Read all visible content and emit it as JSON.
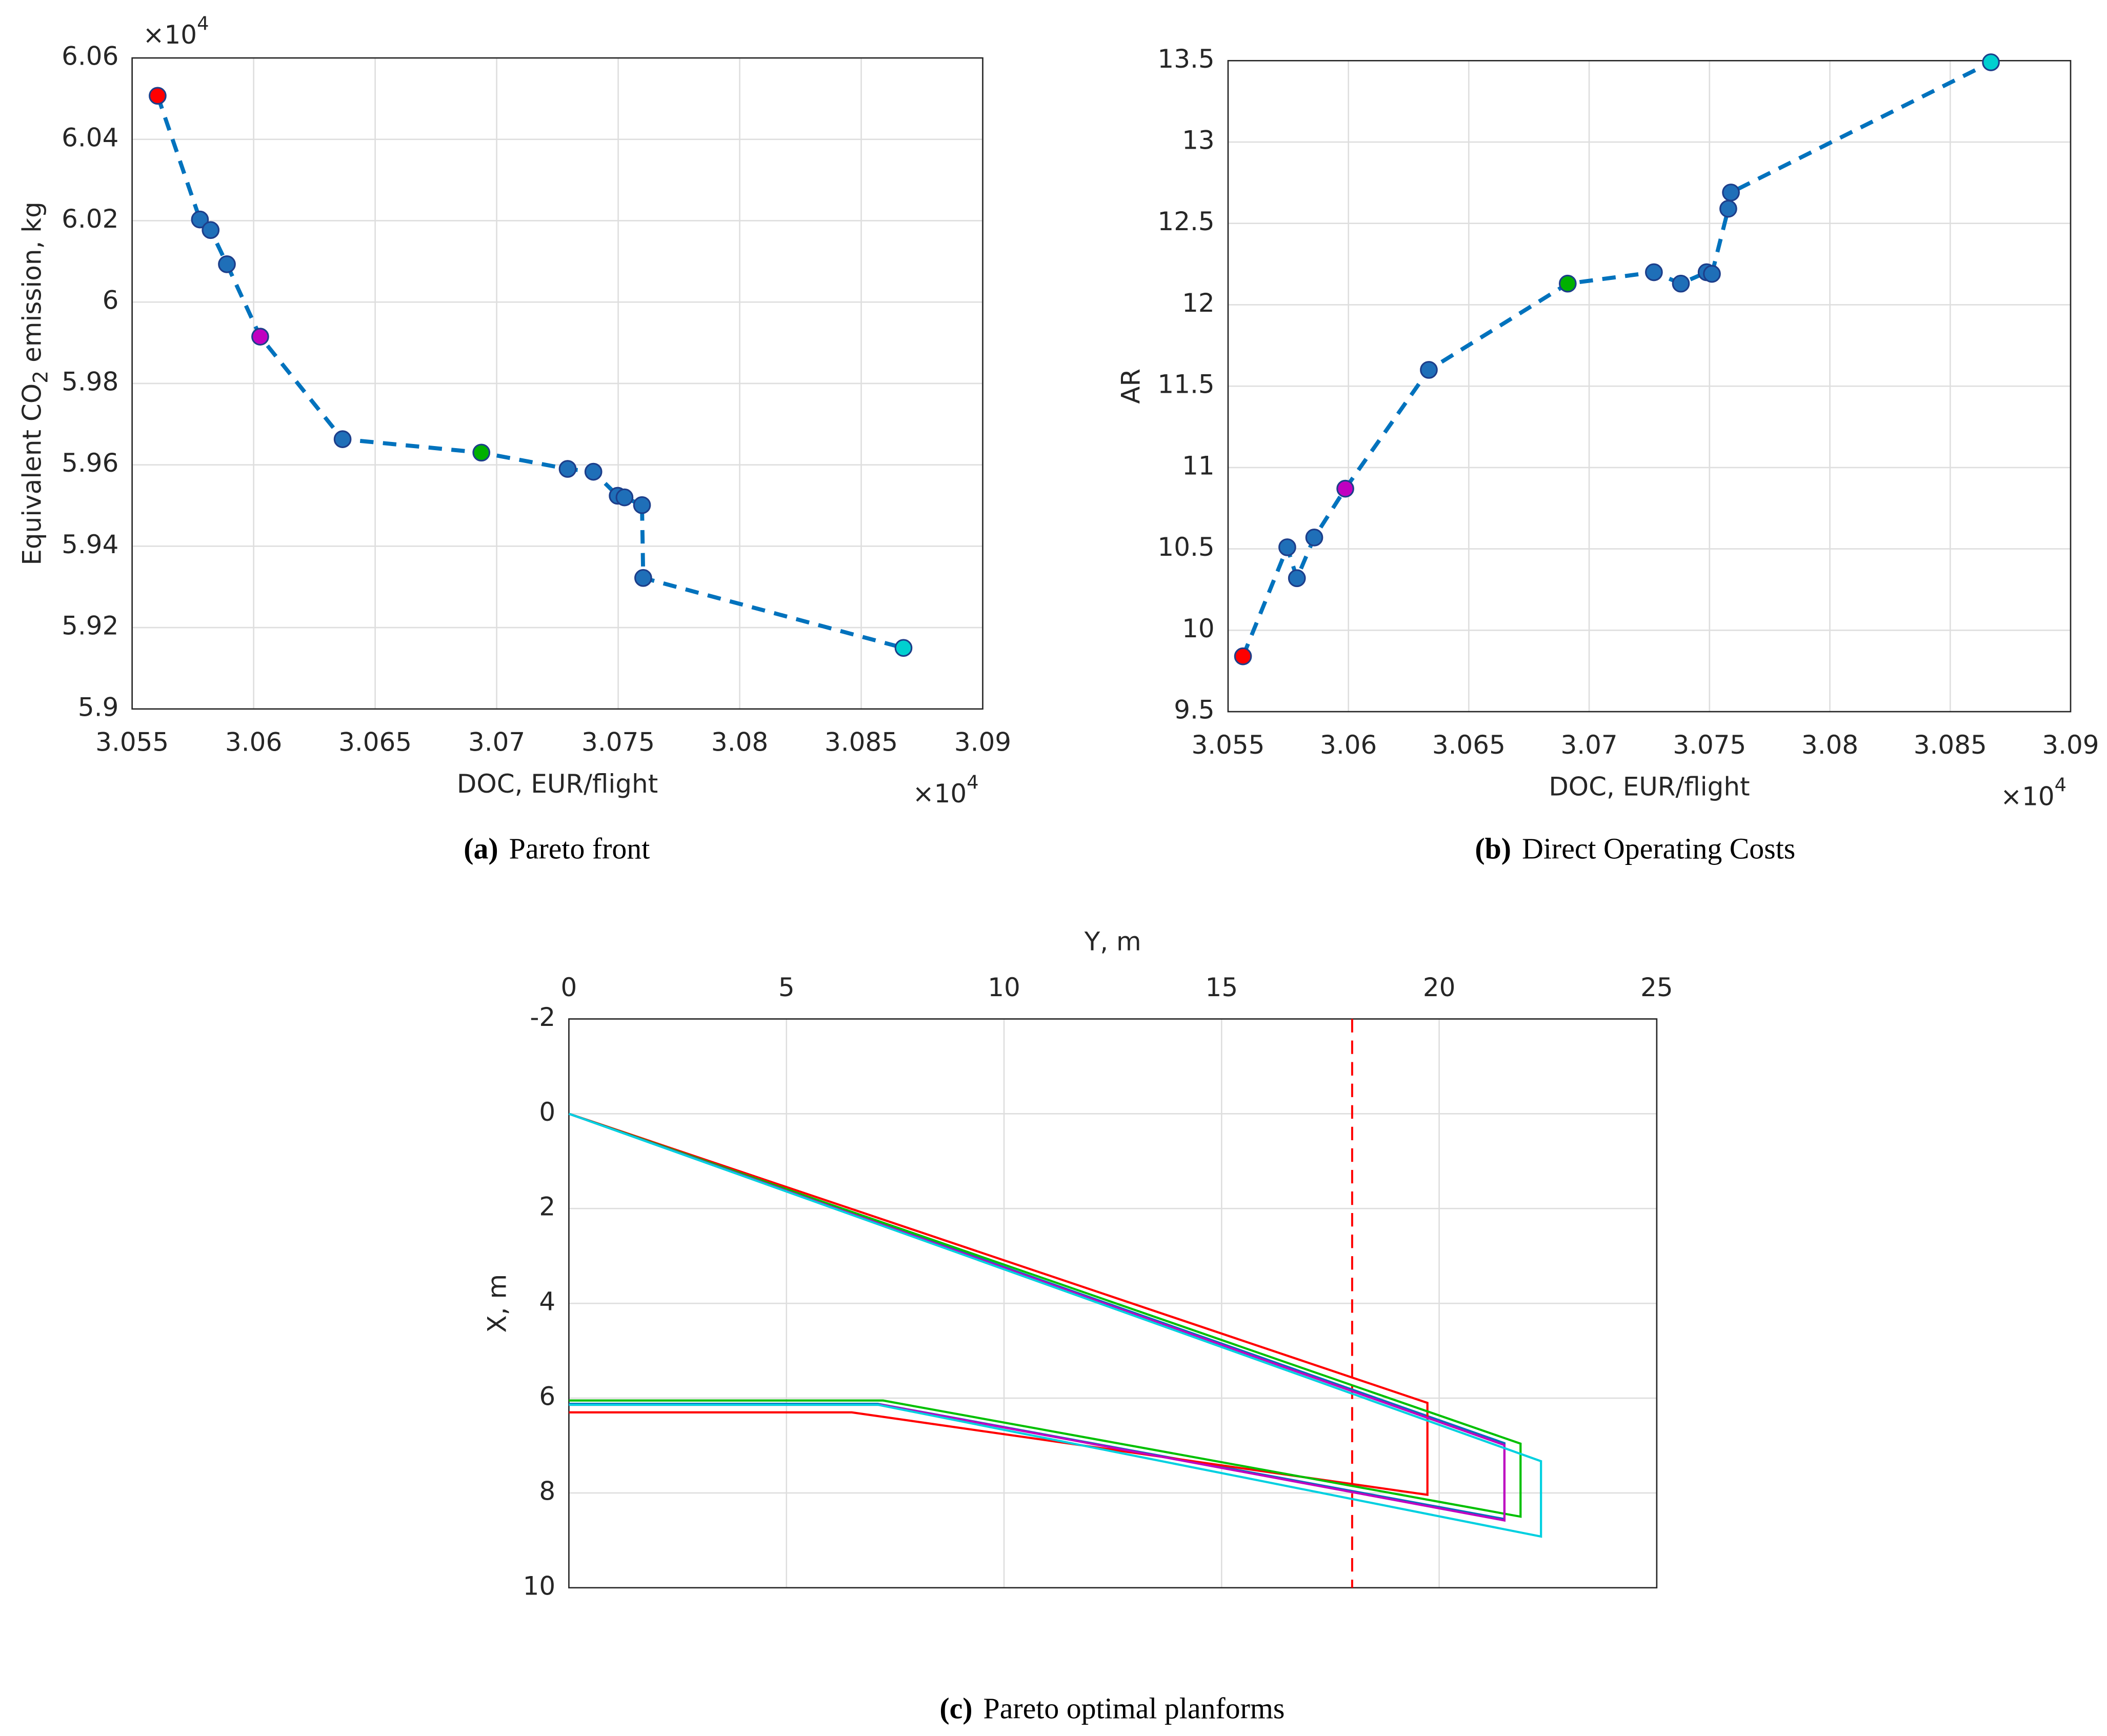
{
  "chart_data": [
    {
      "type": "line",
      "caption_tag": "(a)",
      "caption": "Pareto front",
      "xlabel": "DOC, EUR/flight",
      "ylabel": {
        "text": "Equivalent CO",
        "sub": "2",
        "rest": " emission, kg"
      },
      "x_multiplier": {
        "base": "×10",
        "exp": "4"
      },
      "y_multiplier": {
        "base": "×10",
        "exp": "4"
      },
      "xlim": [
        3.055,
        3.09
      ],
      "xticks": [
        3.055,
        3.06,
        3.065,
        3.07,
        3.075,
        3.08,
        3.085,
        3.09
      ],
      "ylim": [
        5.9,
        6.06
      ],
      "yticks": [
        5.9,
        5.92,
        5.94,
        5.96,
        5.98,
        6,
        6.02,
        6.04,
        6.06
      ],
      "grid": true,
      "series": [
        {
          "color": "#0072bd",
          "x": [
            3.05605,
            3.05779,
            3.05823,
            3.0589,
            3.06027,
            3.06366,
            3.06937,
            3.07292,
            3.07398,
            3.07498,
            3.07526,
            3.07598,
            3.07603,
            3.08674
          ],
          "values": [
            6.0507,
            6.0203,
            6.0177,
            6.0093,
            5.9915,
            5.9663,
            5.963,
            5.959,
            5.9583,
            5.9524,
            5.952,
            5.9501,
            5.9322,
            5.915
          ],
          "marker_colors": [
            "#ff0000",
            "#1f6fb8",
            "#1f6fb8",
            "#1f6fb8",
            "#c000c0",
            "#1f6fb8",
            "#00b000",
            "#1f6fb8",
            "#1f6fb8",
            "#1f6fb8",
            "#1f6fb8",
            "#1f6fb8",
            "#1f6fb8",
            "#00d0d0"
          ]
        }
      ]
    },
    {
      "type": "line",
      "caption_tag": "(b)",
      "caption": "Direct Operating Costs",
      "xlabel": "DOC, EUR/flight",
      "ylabel": {
        "text": "AR"
      },
      "x_multiplier": {
        "base": "×10",
        "exp": "4"
      },
      "xlim": [
        3.055,
        3.09
      ],
      "xticks": [
        3.055,
        3.06,
        3.065,
        3.07,
        3.075,
        3.08,
        3.085,
        3.09
      ],
      "ylim": [
        9.5,
        13.5
      ],
      "yticks": [
        9.5,
        10,
        10.5,
        11,
        11.5,
        12,
        12.5,
        13,
        13.5
      ],
      "grid": true,
      "series": [
        {
          "color": "#0072bd",
          "x": [
            3.05562,
            3.05746,
            3.05786,
            3.05858,
            3.05987,
            3.06334,
            3.06911,
            3.07269,
            3.07381,
            3.07488,
            3.0751,
            3.07578,
            3.07589,
            3.08669
          ],
          "values": [
            9.84,
            10.51,
            10.32,
            10.57,
            10.87,
            11.6,
            12.13,
            12.2,
            12.13,
            12.2,
            12.19,
            12.59,
            12.69,
            13.49
          ],
          "marker_colors": [
            "#ff0000",
            "#1f6fb8",
            "#1f6fb8",
            "#1f6fb8",
            "#c000c0",
            "#1f6fb8",
            "#00b000",
            "#1f6fb8",
            "#1f6fb8",
            "#1f6fb8",
            "#1f6fb8",
            "#1f6fb8",
            "#1f6fb8",
            "#00d0d0"
          ]
        }
      ]
    },
    {
      "type": "outline",
      "caption_tag": "(c)",
      "caption": "Pareto optimal planforms",
      "xlabel": "Y, m",
      "ylabel": {
        "text": "X, m"
      },
      "x_axis_position": "top",
      "y_reversed": true,
      "xlim": [
        0,
        25
      ],
      "xticks": [
        0,
        5,
        10,
        15,
        20,
        25
      ],
      "ylim": [
        -2,
        10
      ],
      "yticks": [
        -2,
        0,
        2,
        4,
        6,
        8,
        10
      ],
      "grid": true,
      "vline": 18,
      "vline_color": "#ff0000",
      "series": [
        {
          "color": "#0072bd",
          "x": [
            0,
            21.5,
            21.5,
            7.1,
            0
          ],
          "values": [
            0,
            6.95,
            8.55,
            6.12,
            6.12
          ]
        },
        {
          "color": "#ff0000",
          "x": [
            0,
            19.73,
            19.73,
            6.5,
            0
          ],
          "values": [
            0,
            6.1,
            8.04,
            6.3,
            6.3
          ]
        },
        {
          "color": "#00c000",
          "x": [
            0,
            21.87,
            21.87,
            7.22,
            0
          ],
          "values": [
            0,
            6.96,
            8.5,
            6.05,
            6.05
          ]
        },
        {
          "color": "#c000c0",
          "x": [
            0,
            21.5,
            21.5,
            7.19,
            0
          ],
          "values": [
            0,
            6.99,
            8.58,
            6.14,
            6.14
          ]
        },
        {
          "color": "#00d0e0",
          "x": [
            0,
            22.34,
            22.34,
            7.1,
            0
          ],
          "values": [
            0,
            7.33,
            8.92,
            6.14,
            6.14
          ]
        }
      ]
    }
  ]
}
